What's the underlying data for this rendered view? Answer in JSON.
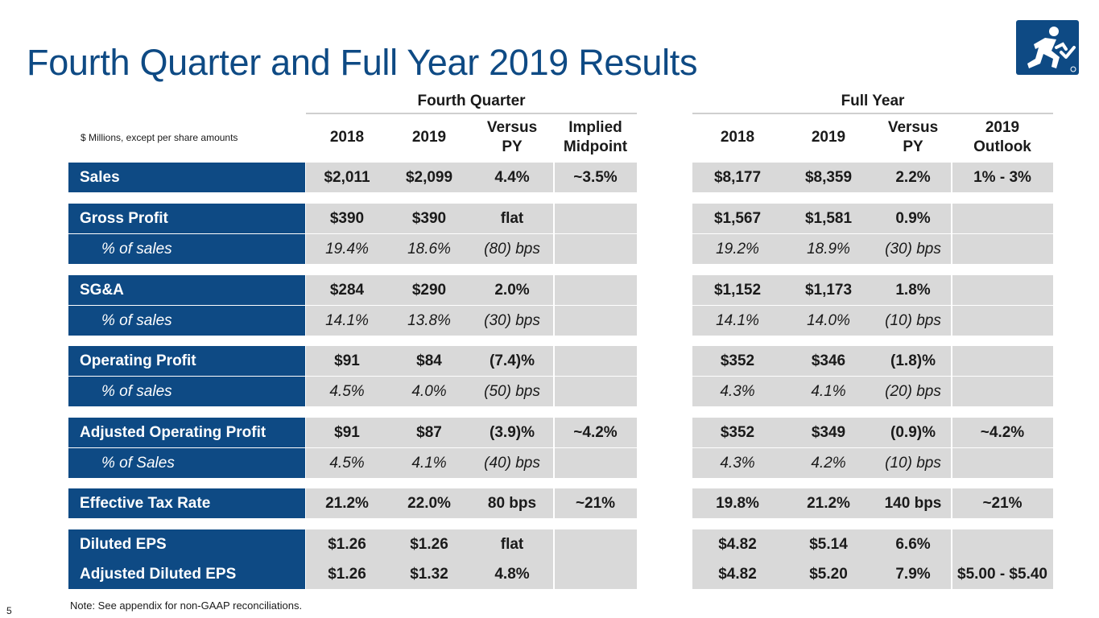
{
  "title": "Fourth Quarter and Full Year 2019 Results",
  "logo_icon": "running-figure-icon",
  "units_note": "$ Millions, except per share amounts",
  "groups": {
    "q4": "Fourth Quarter",
    "fy": "Full Year"
  },
  "headers": {
    "q4_2018": "2018",
    "q4_2019": "2019",
    "q4_vs_py": "Versus PY",
    "q4_implied": "Implied Midpoint",
    "fy_2018": "2018",
    "fy_2019": "2019",
    "fy_vs_py": "Versus PY",
    "fy_outlook": "2019 Outlook"
  },
  "rows": [
    {
      "label": "Sales",
      "q4_2018": "$2,011",
      "q4_2019": "$2,099",
      "q4_vs": "4.4%",
      "q4_implied": "~3.5%",
      "fy_2018": "$8,177",
      "fy_2019": "$8,359",
      "fy_vs": "2.2%",
      "fy_outlook": "1% - 3%"
    },
    {
      "label": "Gross Profit",
      "q4_2018": "$390",
      "q4_2019": "$390",
      "q4_vs": "flat",
      "q4_implied": "",
      "fy_2018": "$1,567",
      "fy_2019": "$1,581",
      "fy_vs": "0.9%",
      "fy_outlook": ""
    },
    {
      "label": "% of sales",
      "q4_2018": "19.4%",
      "q4_2019": "18.6%",
      "q4_vs": "(80) bps",
      "q4_implied": "",
      "fy_2018": "19.2%",
      "fy_2019": "18.9%",
      "fy_vs": "(30) bps",
      "fy_outlook": ""
    },
    {
      "label": "SG&A",
      "q4_2018": "$284",
      "q4_2019": "$290",
      "q4_vs": "2.0%",
      "q4_implied": "",
      "fy_2018": "$1,152",
      "fy_2019": "$1,173",
      "fy_vs": "1.8%",
      "fy_outlook": ""
    },
    {
      "label": "% of sales",
      "q4_2018": "14.1%",
      "q4_2019": "13.8%",
      "q4_vs": "(30) bps",
      "q4_implied": "",
      "fy_2018": "14.1%",
      "fy_2019": "14.0%",
      "fy_vs": "(10) bps",
      "fy_outlook": ""
    },
    {
      "label": "Operating Profit",
      "q4_2018": "$91",
      "q4_2019": "$84",
      "q4_vs": "(7.4)%",
      "q4_implied": "",
      "fy_2018": "$352",
      "fy_2019": "$346",
      "fy_vs": "(1.8)%",
      "fy_outlook": ""
    },
    {
      "label": "% of sales",
      "q4_2018": "4.5%",
      "q4_2019": "4.0%",
      "q4_vs": "(50) bps",
      "q4_implied": "",
      "fy_2018": "4.3%",
      "fy_2019": "4.1%",
      "fy_vs": "(20) bps",
      "fy_outlook": ""
    },
    {
      "label": "Adjusted Operating Profit",
      "q4_2018": "$91",
      "q4_2019": "$87",
      "q4_vs": "(3.9)%",
      "q4_implied": "~4.2%",
      "fy_2018": "$352",
      "fy_2019": "$349",
      "fy_vs": "(0.9)%",
      "fy_outlook": "~4.2%"
    },
    {
      "label": "% of Sales",
      "q4_2018": "4.5%",
      "q4_2019": "4.1%",
      "q4_vs": "(40) bps",
      "q4_implied": "",
      "fy_2018": "4.3%",
      "fy_2019": "4.2%",
      "fy_vs": "(10) bps",
      "fy_outlook": ""
    },
    {
      "label": "Effective Tax Rate",
      "q4_2018": "21.2%",
      "q4_2019": "22.0%",
      "q4_vs": "80 bps",
      "q4_implied": "~21%",
      "fy_2018": "19.8%",
      "fy_2019": "21.2%",
      "fy_vs": "140 bps",
      "fy_outlook": "~21%"
    },
    {
      "label": "Diluted EPS",
      "q4_2018": "$1.26",
      "q4_2019": "$1.26",
      "q4_vs": "flat",
      "q4_implied": "",
      "fy_2018": "$4.82",
      "fy_2019": "$5.14",
      "fy_vs": "6.6%",
      "fy_outlook": ""
    },
    {
      "label": "Adjusted Diluted EPS",
      "q4_2018": "$1.26",
      "q4_2019": "$1.32",
      "q4_vs": "4.8%",
      "q4_implied": "",
      "fy_2018": "$4.82",
      "fy_2019": "$5.20",
      "fy_vs": "7.9%",
      "fy_outlook": "$5.00 - $5.40"
    }
  ],
  "footer_note": "Note: See appendix for non-GAAP reconciliations.",
  "page_number": "5",
  "colors": {
    "brand_blue": "#0e4a84",
    "band_gray": "#d9d9d9"
  }
}
